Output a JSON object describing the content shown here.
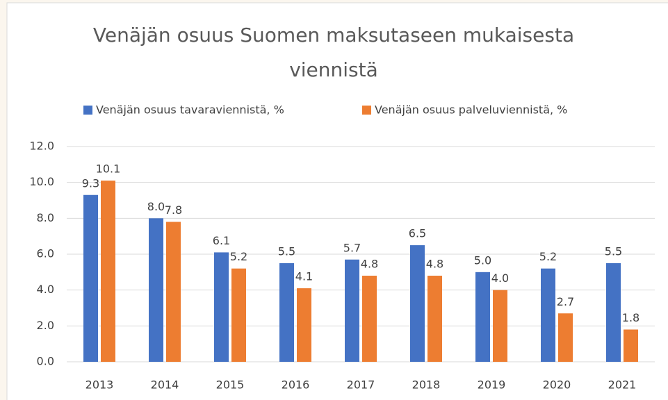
{
  "chart_data": {
    "type": "bar",
    "title": "Venäjän osuus Suomen maksutaseen mukaisesta viennistä",
    "categories": [
      "2013",
      "2014",
      "2015",
      "2016",
      "2017",
      "2018",
      "2019",
      "2020",
      "2021"
    ],
    "series": [
      {
        "name": "Venäjän osuus tavaraviennistä, %",
        "color": "#4472c4",
        "values": [
          9.3,
          8.0,
          6.1,
          5.5,
          5.7,
          6.5,
          5.0,
          5.2,
          5.5
        ],
        "value_labels": [
          "9.3",
          "8.0",
          "6.1",
          "5.5",
          "5.7",
          "6.5",
          "5.0",
          "5.2",
          "5.5"
        ]
      },
      {
        "name": "Venäjän osuus palveluviennistä, %",
        "color": "#ed7d31",
        "values": [
          10.1,
          7.8,
          5.2,
          4.1,
          4.8,
          4.8,
          4.0,
          2.7,
          1.8
        ],
        "value_labels": [
          "10.1",
          "7.8",
          "5.2",
          "4.1",
          "4.8",
          "4.8",
          "4.0",
          "2.7",
          "1.8"
        ]
      }
    ],
    "ylim": [
      0,
      12
    ],
    "yticks": [
      {
        "value": 0,
        "label": "0.0"
      },
      {
        "value": 2,
        "label": "2.0"
      },
      {
        "value": 4,
        "label": "4.0"
      },
      {
        "value": 6,
        "label": "6.0"
      },
      {
        "value": 8,
        "label": "8.0"
      },
      {
        "value": 10,
        "label": "10.0"
      },
      {
        "value": 12,
        "label": "12.0"
      }
    ],
    "grid": true,
    "legend": "top"
  }
}
